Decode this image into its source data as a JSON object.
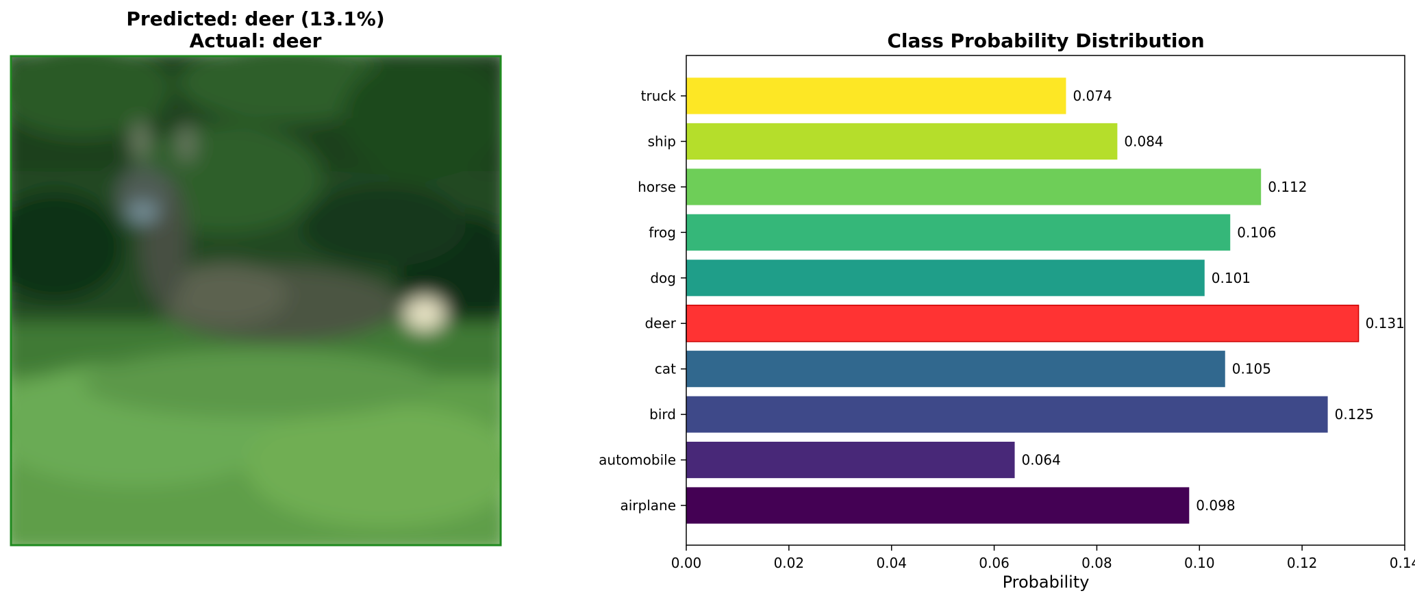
{
  "image_panel": {
    "title_line1": "Predicted: deer (13.1%)",
    "title_line2": "Actual: deer",
    "border_color": "#1f8a1f"
  },
  "chart_data": {
    "type": "bar",
    "orientation": "horizontal",
    "title": "Class Probability Distribution",
    "xlabel": "Probability",
    "ylabel": "",
    "xlim": [
      0,
      0.14
    ],
    "xticks": [
      "0.00",
      "0.02",
      "0.04",
      "0.06",
      "0.08",
      "0.10",
      "0.12",
      "0.14"
    ],
    "grid": false,
    "categories": [
      "airplane",
      "automobile",
      "bird",
      "cat",
      "deer",
      "dog",
      "frog",
      "horse",
      "ship",
      "truck"
    ],
    "values": [
      0.098,
      0.064,
      0.125,
      0.105,
      0.131,
      0.101,
      0.106,
      0.112,
      0.084,
      0.074
    ],
    "value_labels": [
      "0.098",
      "0.064",
      "0.125",
      "0.105",
      "0.131",
      "0.101",
      "0.106",
      "0.112",
      "0.084",
      "0.074"
    ],
    "colors": [
      "#440154",
      "#482878",
      "#3e4989",
      "#31688e",
      "#ff3333",
      "#1f9e89",
      "#35b779",
      "#6ece58",
      "#b5de2b",
      "#fde725"
    ],
    "highlight": "deer"
  }
}
